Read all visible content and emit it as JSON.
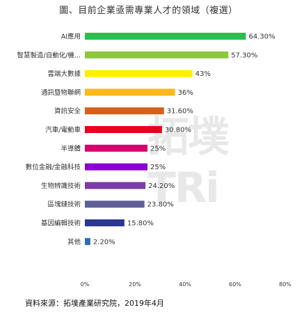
{
  "title": "圖、目前企業亟需專業人才的領域（複選）",
  "source": "資料來源：拓墣產業研究院，2019年4月",
  "watermark": "拓墣TRi",
  "chart_data": {
    "type": "bar",
    "orientation": "horizontal",
    "categories": [
      "AI應用",
      "智慧製造/自動化/機...",
      "雲端大數據",
      "通訊暨物聯網",
      "資訊安全",
      "汽車/電動車",
      "半導體",
      "數位金融/金融科技",
      "生物辨識技術",
      "區塊鏈技術",
      "基因編輯技術",
      "其他"
    ],
    "values": [
      64.3,
      57.3,
      43,
      36,
      31.6,
      30.8,
      25,
      25,
      24.2,
      23.8,
      15.8,
      2.2
    ],
    "value_labels": [
      "64.30%",
      "57.30%",
      "43%",
      "36%",
      "31.60%",
      "30.80%",
      "25%",
      "25%",
      "24.20%",
      "23.80%",
      "15.80%",
      "2.20%"
    ],
    "colors": [
      "#2dbd4e",
      "#8dc63f",
      "#ffee00",
      "#ffb81c",
      "#d4601c",
      "#e8001c",
      "#d6006e",
      "#8b00d0",
      "#7a3ca8",
      "#5f5f96",
      "#2b3890",
      "#2a6fb5"
    ],
    "xlim": [
      0,
      80
    ],
    "xticks": [
      0,
      20,
      40,
      60,
      80
    ],
    "xtick_labels": [
      "0%",
      "20%",
      "40%",
      "60%",
      "80%"
    ],
    "grid": false
  }
}
